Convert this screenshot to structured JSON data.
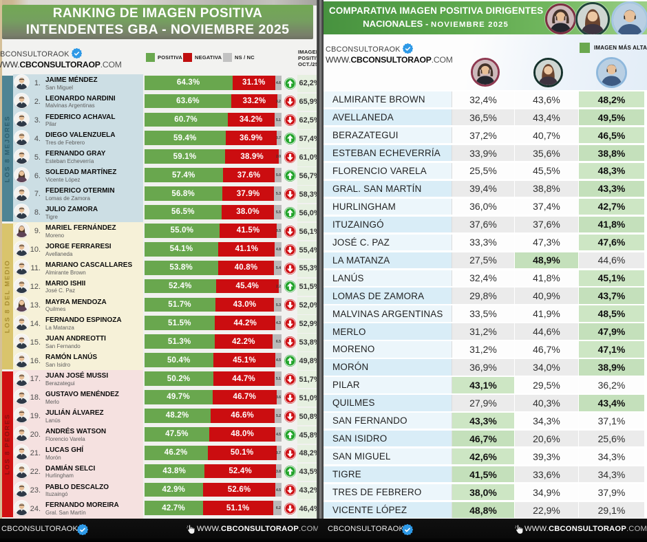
{
  "chart_data": [
    {
      "type": "bar",
      "orientation": "horizontal-stacked",
      "title": "RANKING DE IMAGEN POSITIVA INTENDENTES GBA - NOVIEMBRE 2025",
      "legend": [
        "POSITIVA",
        "NEGATIVA",
        "NS / NC"
      ],
      "legend_colors": {
        "positiva": "#69a74e",
        "negativa": "#cb0d10",
        "ns_nc": "#b9b9b9"
      },
      "extra_column_header_lines": [
        "IMAGEN",
        "POSITIVA",
        "OCT./25"
      ],
      "x_range_pct": [
        0,
        100
      ],
      "groups": [
        {
          "label": "LOS 8 MEJORES",
          "rows": "1-8",
          "strip_color": "#4e8494",
          "row_bg": "#ccdee4"
        },
        {
          "label": "LOS 8 DEL MEDIO",
          "rows": "9-16",
          "strip_color": "#d9c46c",
          "row_bg": "#f6f1d8"
        },
        {
          "label": "LOS 8 PEORES",
          "rows": "17-24",
          "strip_color": "#d01112",
          "row_bg": "#f5e1e0"
        }
      ],
      "rows": [
        {
          "rank": "1.",
          "name": "JAIME MÉNDEZ",
          "district": "San Miguel",
          "positiva": 64.3,
          "negativa": 31.1,
          "ns_nc": 4.6,
          "trend": "up",
          "imagen_oct": "62,2%",
          "photo": "man"
        },
        {
          "rank": "2.",
          "name": "LEONARDO NARDINI",
          "district": "Malvinas Argentinas",
          "positiva": 63.6,
          "negativa": 33.2,
          "ns_nc": 3.2,
          "trend": "down",
          "imagen_oct": "65,9%",
          "photo": "man"
        },
        {
          "rank": "3.",
          "name": "FEDERICO ACHAVAL",
          "district": "Pilar",
          "positiva": 60.7,
          "negativa": 34.2,
          "ns_nc": 5.1,
          "trend": "down",
          "imagen_oct": "62,5%",
          "photo": "man"
        },
        {
          "rank": "4.",
          "name": "DIEGO VALENZUELA",
          "district": "Tres de Febrero",
          "positiva": 59.4,
          "negativa": 36.9,
          "ns_nc": 3.7,
          "trend": "up",
          "imagen_oct": "57,4%",
          "photo": "man"
        },
        {
          "rank": "5.",
          "name": "FERNANDO GRAY",
          "district": "Esteban Echeverría",
          "positiva": 59.1,
          "negativa": 38.9,
          "ns_nc": 2.0,
          "trend": "down",
          "imagen_oct": "61,0%",
          "photo": "man"
        },
        {
          "rank": "6.",
          "name": "SOLEDAD MARTÍNEZ",
          "district": "Vicente López",
          "positiva": 57.4,
          "negativa": 37.6,
          "ns_nc": 5.0,
          "trend": "up",
          "imagen_oct": "56,7%",
          "photo": "woman"
        },
        {
          "rank": "7.",
          "name": "FEDERICO OTERMIN",
          "district": "Lomas de Zamora",
          "positiva": 56.8,
          "negativa": 37.9,
          "ns_nc": 5.3,
          "trend": "down",
          "imagen_oct": "58,3%",
          "photo": "man"
        },
        {
          "rank": "8.",
          "name": "JULIO ZAMORA",
          "district": "Tigre",
          "positiva": 56.5,
          "negativa": 38.0,
          "ns_nc": 5.5,
          "trend": "up",
          "imagen_oct": "56,0%",
          "photo": "man"
        },
        {
          "rank": "9.",
          "name": "MARIEL FERNÁNDEZ",
          "district": "Moreno",
          "positiva": 55.0,
          "negativa": 41.5,
          "ns_nc": 3.5,
          "trend": "down",
          "imagen_oct": "56,1%",
          "photo": "woman"
        },
        {
          "rank": "10.",
          "name": "JORGE FERRARESI",
          "district": "Avellaneda",
          "positiva": 54.1,
          "negativa": 41.1,
          "ns_nc": 4.8,
          "trend": "down",
          "imagen_oct": "55,4%",
          "photo": "man"
        },
        {
          "rank": "11.",
          "name": "MARIANO CASCALLARES",
          "district": "Almirante Brown",
          "positiva": 53.8,
          "negativa": 40.8,
          "ns_nc": 5.4,
          "trend": "down",
          "imagen_oct": "55,3%",
          "photo": "man"
        },
        {
          "rank": "12.",
          "name": "MARIO ISHII",
          "district": "José C. Paz",
          "positiva": 52.4,
          "negativa": 45.4,
          "ns_nc": 2.2,
          "trend": "up",
          "imagen_oct": "51,5%",
          "photo": "man"
        },
        {
          "rank": "13.",
          "name": "MAYRA MENDOZA",
          "district": "Quilmes",
          "positiva": 51.7,
          "negativa": 43.0,
          "ns_nc": 5.3,
          "trend": "down",
          "imagen_oct": "52,0%",
          "photo": "woman"
        },
        {
          "rank": "14.",
          "name": "FERNANDO ESPINOZA",
          "district": "La Matanza",
          "positiva": 51.5,
          "negativa": 44.2,
          "ns_nc": 4.3,
          "trend": "down",
          "imagen_oct": "52,9%",
          "photo": "man"
        },
        {
          "rank": "15.",
          "name": "JUAN ANDREOTTI",
          "district": "San Fernando",
          "positiva": 51.3,
          "negativa": 42.2,
          "ns_nc": 6.5,
          "trend": "down",
          "imagen_oct": "53,8%",
          "photo": "man"
        },
        {
          "rank": "16.",
          "name": "RAMÓN LANÚS",
          "district": "San Isidro",
          "positiva": 50.4,
          "negativa": 45.1,
          "ns_nc": 4.5,
          "trend": "up",
          "imagen_oct": "49,8%",
          "photo": "man"
        },
        {
          "rank": "17.",
          "name": "JUAN JOSÉ MUSSI",
          "district": "Berazategui",
          "positiva": 50.2,
          "negativa": 44.7,
          "ns_nc": 5.1,
          "trend": "down",
          "imagen_oct": "51,7%",
          "photo": "man"
        },
        {
          "rank": "18.",
          "name": "GUSTAVO MENÉNDEZ",
          "district": "Merlo",
          "positiva": 49.7,
          "negativa": 46.7,
          "ns_nc": 3.6,
          "trend": "down",
          "imagen_oct": "51,0%",
          "photo": "man"
        },
        {
          "rank": "19.",
          "name": "JULIÁN ÁLVAREZ",
          "district": "Lanús",
          "positiva": 48.2,
          "negativa": 46.6,
          "ns_nc": 5.2,
          "trend": "down",
          "imagen_oct": "50,8%",
          "photo": "man"
        },
        {
          "rank": "20.",
          "name": "ANDRÉS WATSON",
          "district": "Florencio Varela",
          "positiva": 47.5,
          "negativa": 48.0,
          "ns_nc": 4.5,
          "trend": "up",
          "imagen_oct": "45,8%",
          "photo": "man"
        },
        {
          "rank": "21.",
          "name": "LUCAS GHÍ",
          "district": "Morón",
          "positiva": 46.2,
          "negativa": 50.1,
          "ns_nc": 3.7,
          "trend": "down",
          "imagen_oct": "48,2%",
          "photo": "man"
        },
        {
          "rank": "22.",
          "name": "DAMIÁN SELCI",
          "district": "Hurlingham",
          "positiva": 43.8,
          "negativa": 52.4,
          "ns_nc": 3.8,
          "trend": "up",
          "imagen_oct": "43,5%",
          "photo": "man"
        },
        {
          "rank": "23.",
          "name": "PABLO DESCALZO",
          "district": "Ituzaingó",
          "positiva": 42.9,
          "negativa": 52.6,
          "ns_nc": 4.5,
          "trend": "down",
          "imagen_oct": "43,2%",
          "photo": "man"
        },
        {
          "rank": "24.",
          "name": "FERNANDO MOREIRA",
          "district": "Gral. San Martín",
          "positiva": 42.7,
          "negativa": 51.1,
          "ns_nc": 6.2,
          "trend": "down",
          "imagen_oct": "46,4%",
          "photo": "man"
        }
      ]
    },
    {
      "type": "table",
      "title": "COMPARATIVA IMAGEN POSITIVA DIRIGENTES NACIONALES - NOVIEMBRE 2025",
      "legend": "IMAGEN MÁS ALTA",
      "highlight_color": "#c9e3c0",
      "columns": [
        "municipio",
        "dirigente-milei",
        "dirigente-cristina-kirchner",
        "dirigente-axel-kicillof"
      ],
      "rows": [
        {
          "municipio": "ALMIRANTE BROWN",
          "values": [
            "32,4%",
            "43,6%",
            "48,2%"
          ],
          "highest": 2
        },
        {
          "municipio": "AVELLANEDA",
          "values": [
            "36,5%",
            "43,4%",
            "49,5%"
          ],
          "highest": 2
        },
        {
          "municipio": "BERAZATEGUI",
          "values": [
            "37,2%",
            "40,7%",
            "46,5%"
          ],
          "highest": 2
        },
        {
          "municipio": "ESTEBAN ECHEVERRÍA",
          "values": [
            "33,9%",
            "35,6%",
            "38,8%"
          ],
          "highest": 2
        },
        {
          "municipio": "FLORENCIO VARELA",
          "values": [
            "25,5%",
            "45,5%",
            "48,3%"
          ],
          "highest": 2
        },
        {
          "municipio": "GRAL. SAN MARTÍN",
          "values": [
            "39,4%",
            "38,8%",
            "43,3%"
          ],
          "highest": 2
        },
        {
          "municipio": "HURLINGHAM",
          "values": [
            "36,0%",
            "37,4%",
            "42,7%"
          ],
          "highest": 2
        },
        {
          "municipio": "ITUZAINGÓ",
          "values": [
            "37,6%",
            "37,6%",
            "41,8%"
          ],
          "highest": 2
        },
        {
          "municipio": "JOSÉ C. PAZ",
          "values": [
            "33,3%",
            "47,3%",
            "47,6%"
          ],
          "highest": 2
        },
        {
          "municipio": "LA MATANZA",
          "values": [
            "27,5%",
            "48,9%",
            "44,6%"
          ],
          "highest": 1
        },
        {
          "municipio": "LANÚS",
          "values": [
            "32,4%",
            "41,8%",
            "45,1%"
          ],
          "highest": 2
        },
        {
          "municipio": "LOMAS DE ZAMORA",
          "values": [
            "29,8%",
            "40,9%",
            "43,7%"
          ],
          "highest": 2
        },
        {
          "municipio": "MALVINAS ARGENTINAS",
          "values": [
            "33,5%",
            "41,9%",
            "48,5%"
          ],
          "highest": 2
        },
        {
          "municipio": "MERLO",
          "values": [
            "31,2%",
            "44,6%",
            "47,9%"
          ],
          "highest": 2
        },
        {
          "municipio": "MORENO",
          "values": [
            "31,2%",
            "46,7%",
            "47,1%"
          ],
          "highest": 2
        },
        {
          "municipio": "MORÓN",
          "values": [
            "36,9%",
            "34,0%",
            "38,9%"
          ],
          "highest": 2
        },
        {
          "municipio": "PILAR",
          "values": [
            "43,1%",
            "29,5%",
            "36,2%"
          ],
          "highest": 0
        },
        {
          "municipio": "QUILMES",
          "values": [
            "27,9%",
            "40,3%",
            "43,4%"
          ],
          "highest": 2
        },
        {
          "municipio": "SAN FERNANDO",
          "values": [
            "43,3%",
            "34,3%",
            "37,1%"
          ],
          "highest": 0
        },
        {
          "municipio": "SAN ISIDRO",
          "values": [
            "46,7%",
            "20,6%",
            "25,6%"
          ],
          "highest": 0
        },
        {
          "municipio": "SAN MIGUEL",
          "values": [
            "42,6%",
            "39,3%",
            "34,3%"
          ],
          "highest": 0
        },
        {
          "municipio": "TIGRE",
          "values": [
            "41,5%",
            "33,6%",
            "34,3%"
          ],
          "highest": 0
        },
        {
          "municipio": "TRES DE FEBRERO",
          "values": [
            "38,0%",
            "34,9%",
            "37,9%"
          ],
          "highest": 0
        },
        {
          "municipio": "VICENTE LÓPEZ",
          "values": [
            "48,8%",
            "22,9%",
            "29,1%"
          ],
          "highest": 0
        }
      ]
    }
  ],
  "left_panel": {
    "title_line1": "RANKING DE IMAGEN POSITIVA",
    "title_line2": "INTENDENTES GBA - NOVIEMBRE 2025",
    "watermark_account": "CBCONSULTORAOK",
    "watermark_url_www": "WWW.",
    "watermark_url_bold": "CBCONSULTORAOP",
    "watermark_url_com": ".COM",
    "legend_positiva": "POSITIVA",
    "legend_negativa": "NEGATIVA",
    "legend_nsnc": "NS / NC",
    "col_header_line1": "IMAGEN",
    "col_header_line2": "POSITIVA",
    "col_header_line3": "OCT./25"
  },
  "right_panel": {
    "title_line1": "COMPARATIVA IMAGEN POSITIVA DIRIGENTES",
    "title_line2_a": "NACIONALES - ",
    "title_line2_b": "NOVIEMBRE  2025",
    "watermark_account": "CBCONSULTORAOK",
    "watermark_url_www": "WWW.",
    "watermark_url_bold": "CBCONSULTORAOP",
    "watermark_url_com": ".COM",
    "legend_label": "IMAGEN MÁS ALTA"
  },
  "footer": {
    "account": "CBCONSULTORAOK",
    "url_www": "WWW.",
    "url_bold": "CBCONSULTORAOP",
    "url_com": ".COM"
  }
}
